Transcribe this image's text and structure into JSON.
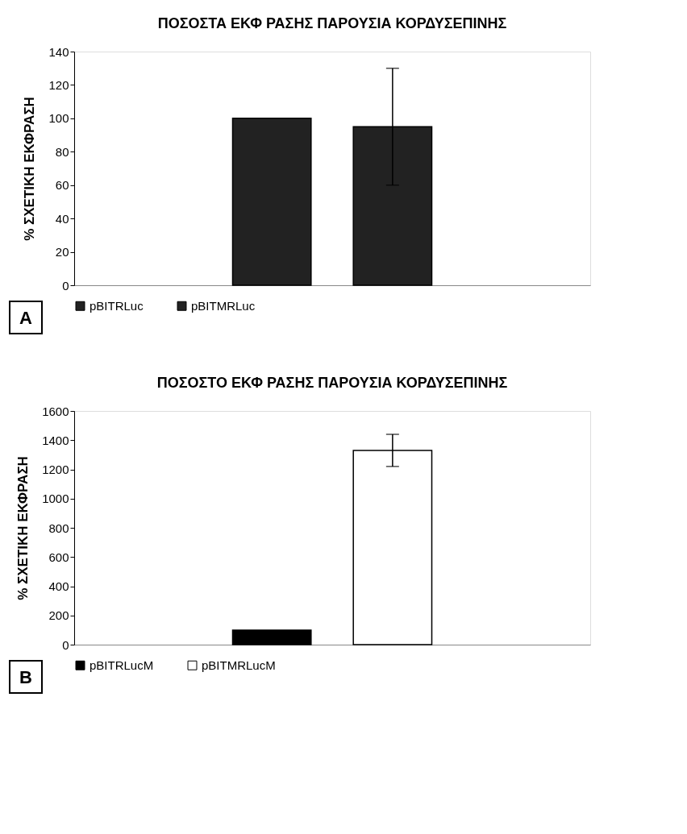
{
  "chart_data": [
    {
      "type": "bar",
      "title": "ΠΟΣΟΣΤΑ ΕΚΦ ΡΑΣΗΣ ΠΑΡΟΥΣΙΑ ΚΟΡΔΥΣΕΠΙΝΗΣ",
      "ylabel": "% ΣΧΕΤΙΚΗ ΕΚΦΡΑΣΗ",
      "categories": [
        null
      ],
      "series": [
        {
          "name": "pBITRLuc",
          "color": "#222222",
          "values": [
            100
          ],
          "errors": [
            null
          ]
        },
        {
          "name": "pBITMRLuc",
          "color": "#222222",
          "values": [
            95
          ],
          "errors": [
            35
          ]
        }
      ],
      "ylim": [
        0,
        140
      ],
      "yticks": [
        0,
        20,
        40,
        60,
        80,
        100,
        120,
        140
      ],
      "grid": false,
      "legend": "bottom",
      "tick_labels": "y",
      "annotations": [
        "A"
      ]
    },
    {
      "type": "bar",
      "title": "ΠΟΣΟΣΤΟ ΕΚΦ ΡΑΣΗΣ ΠΑΡΟΥΣΙΑ ΚΟΡΔΥΣΕΠΙΝΗΣ",
      "ylabel": "% ΣΧΕΤΙΚΗ ΕΚΦΡΑΣΗ",
      "categories": [
        null
      ],
      "series": [
        {
          "name": "pBITRLucM",
          "color": "#000000",
          "values": [
            100
          ],
          "errors": [
            null
          ]
        },
        {
          "name": "pBITMRLucM",
          "color": "#ffffff",
          "values": [
            1330
          ],
          "errors": [
            110
          ]
        }
      ],
      "ylim": [
        0,
        1600
      ],
      "yticks": [
        0,
        200,
        400,
        600,
        800,
        1000,
        1200,
        1400,
        1600
      ],
      "grid": false,
      "legend": "bottom",
      "tick_labels": "y",
      "annotations": [
        "B"
      ]
    }
  ]
}
